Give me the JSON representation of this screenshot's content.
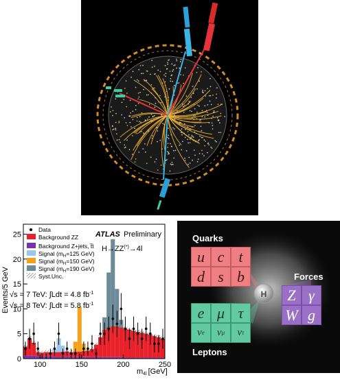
{
  "event_display": {
    "image": "ATLAS collision event display"
  },
  "chart": {
    "ylabel": "Events/5 GeV",
    "xlabel": "m",
    "xlabel_sub": "4l",
    "xlabel_unit": "[GeV]",
    "brand": "ATLAS",
    "brand_suffix": "Preliminary",
    "process": "H→ZZ",
    "process_sup": "(*)",
    "process_end": "→4l",
    "legend": [
      {
        "label": "Data",
        "color": "#000000",
        "kind": "dot"
      },
      {
        "label": "Background ZZ",
        "color": "#e8202a",
        "kind": "box"
      },
      {
        "label": "Background Z+jets, t̅t",
        "color": "#7a33a8",
        "kind": "box"
      },
      {
        "label": "Signal (m",
        "sub": "H",
        "end": "=125 GeV)",
        "color": "#9bc6ea",
        "kind": "box"
      },
      {
        "label": "Signal (m",
        "sub": "H",
        "end": "=150 GeV)",
        "color": "#f3a21d",
        "kind": "box"
      },
      {
        "label": "Signal (m",
        "sub": "H",
        "end": "=190 GeV)",
        "color": "#6d8a99",
        "kind": "box"
      },
      {
        "label": "Syst.Unc.",
        "color": "#999999",
        "kind": "hatch"
      }
    ],
    "lumi": [
      {
        "pre": "√s = 7 TeV: ∫Ldt = 4.8 fb",
        "sup": "-1"
      },
      {
        "pre": "√s = 8 TeV: ∫Ldt = 5.8 fb",
        "sup": "-1"
      }
    ],
    "xticks": [
      "100",
      "150",
      "200",
      "250"
    ],
    "yticks": [
      "0",
      "5",
      "10",
      "15",
      "20",
      "25"
    ]
  },
  "chart_data": {
    "type": "bar",
    "xlim": [
      80,
      250
    ],
    "ylim": [
      0,
      27
    ],
    "bin_width": 5,
    "series": [
      {
        "name": "Background Z+jets, t̅t",
        "x": [
          82.5,
          87.5,
          92.5,
          97.5,
          102.5,
          107.5,
          112.5,
          117.5,
          122.5,
          127.5,
          132.5,
          137.5,
          142.5,
          147.5,
          152.5,
          157.5,
          162.5,
          167.5,
          172.5,
          177.5,
          182.5,
          187.5,
          192.5,
          197.5,
          202.5,
          207.5,
          212.5,
          217.5,
          222.5,
          227.5,
          232.5,
          237.5,
          242.5,
          247.5
        ],
        "values": [
          0.6,
          0.6,
          0.6,
          0.5,
          0.5,
          0.5,
          0.5,
          0.4,
          0.4,
          0.4,
          0.4,
          0.3,
          0.3,
          0.3,
          0.3,
          0.3,
          0.3,
          0.3,
          0.3,
          0.3,
          0.3,
          0.3,
          0.3,
          0.3,
          0.2,
          0.2,
          0.2,
          0.2,
          0.2,
          0.2,
          0.2,
          0.2,
          0.2,
          0.2
        ]
      },
      {
        "name": "Background ZZ",
        "x": [
          82.5,
          87.5,
          92.5,
          97.5,
          102.5,
          107.5,
          112.5,
          117.5,
          122.5,
          127.5,
          132.5,
          137.5,
          142.5,
          147.5,
          152.5,
          157.5,
          162.5,
          167.5,
          172.5,
          177.5,
          182.5,
          187.5,
          192.5,
          197.5,
          202.5,
          207.5,
          212.5,
          217.5,
          222.5,
          227.5,
          232.5,
          237.5,
          242.5,
          247.5
        ],
        "values": [
          1.8,
          3.5,
          2.6,
          0.8,
          0.7,
          0.8,
          0.8,
          0.9,
          0.9,
          1.0,
          1.0,
          1.0,
          1.1,
          1.1,
          1.2,
          1.3,
          1.6,
          2.5,
          4.0,
          5.5,
          6.0,
          6.2,
          6.2,
          6.0,
          5.8,
          5.6,
          5.4,
          5.2,
          5.0,
          4.8,
          4.6,
          4.3,
          4.1,
          3.8
        ]
      },
      {
        "name": "Signal (mH=125 GeV)",
        "x": [
          117.5,
          122.5,
          127.5
        ],
        "values": [
          0.6,
          2.8,
          1.2
        ]
      },
      {
        "name": "Signal (mH=150 GeV)",
        "x": [
          142.5,
          147.5,
          152.5
        ],
        "values": [
          2.0,
          9.0,
          1.5
        ]
      },
      {
        "name": "Signal (mH=190 GeV)",
        "x": [
          177.5,
          182.5,
          187.5,
          192.5,
          197.5
        ],
        "values": [
          2.5,
          11.0,
          17.5,
          7.5,
          1.5
        ]
      }
    ],
    "data": {
      "name": "Data",
      "x": [
        82.5,
        87.5,
        92.5,
        97.5,
        102.5,
        107.5,
        112.5,
        117.5,
        122.5,
        127.5,
        132.5,
        137.5,
        142.5,
        147.5,
        152.5,
        157.5,
        162.5,
        167.5,
        172.5,
        177.5,
        182.5,
        187.5,
        192.5,
        197.5,
        202.5,
        207.5,
        212.5,
        217.5,
        222.5,
        227.5,
        232.5,
        237.5,
        242.5,
        247.5
      ],
      "values": [
        2,
        4,
        5,
        2,
        0,
        0,
        1,
        2,
        5,
        1,
        2,
        1,
        1,
        0,
        2,
        2,
        3,
        1,
        5,
        5,
        6,
        8,
        7,
        10,
        6,
        4,
        6,
        5,
        4,
        6,
        5,
        3,
        3,
        4
      ]
    }
  },
  "standard_model": {
    "title_quarks": "Quarks",
    "title_forces": "Forces",
    "title_leptons": "Leptons",
    "quarks": [
      "u",
      "c",
      "t",
      "d",
      "s",
      "b"
    ],
    "forces": [
      "Z",
      "γ",
      "W",
      "g"
    ],
    "leptons": [
      "e",
      "μ",
      "τ",
      "ν",
      "ν",
      "ν"
    ],
    "lepton_subs": [
      "e",
      "μ",
      "τ"
    ],
    "center_label": "H"
  }
}
